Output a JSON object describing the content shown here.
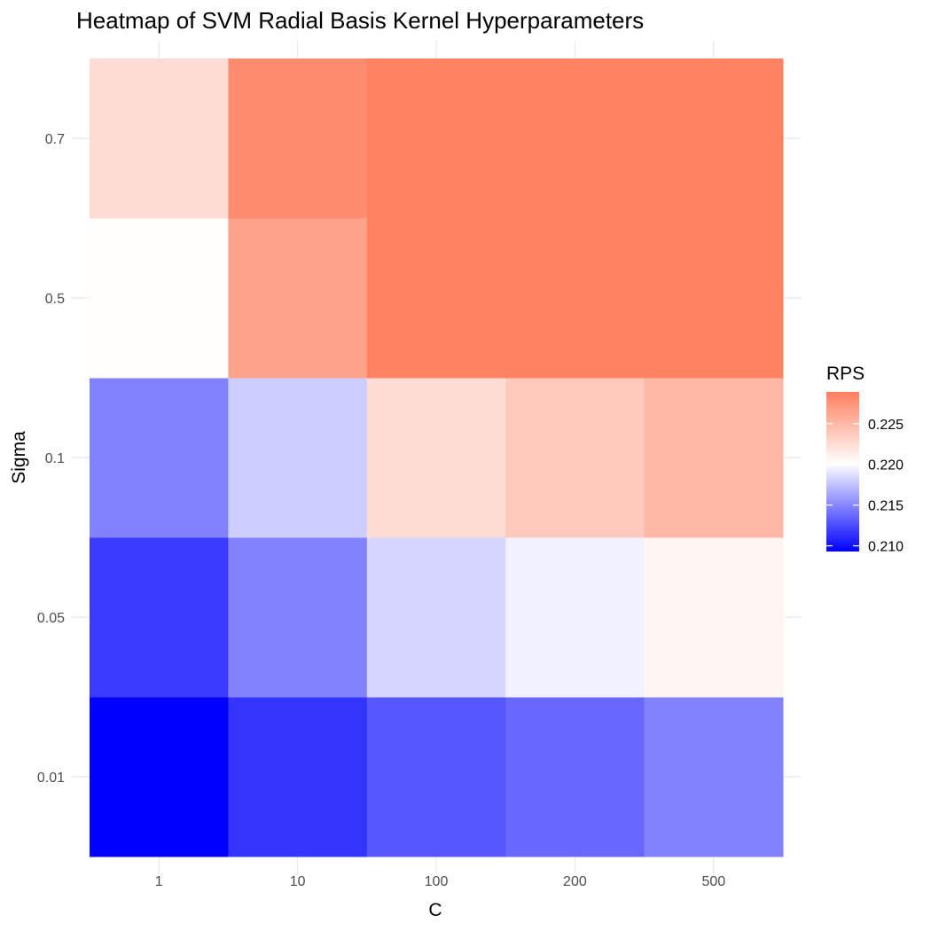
{
  "chart_data": {
    "type": "heatmap",
    "title": "Heatmap of SVM Radial Basis Kernel Hyperparameters",
    "xlabel": "C",
    "ylabel": "Sigma",
    "x_categories": [
      "1",
      "10",
      "100",
      "200",
      "500"
    ],
    "y_categories": [
      "0.01",
      "0.05",
      "0.1",
      "0.5",
      "0.7"
    ],
    "z_values": {
      "0.01": [
        0.2093,
        0.2115,
        0.213,
        0.2137,
        0.2148
      ],
      "0.05": [
        0.2118,
        0.2148,
        0.2183,
        0.2195,
        0.2207
      ],
      "0.1": [
        0.2148,
        0.218,
        0.2225,
        0.2238,
        0.225
      ],
      "0.5": [
        0.2202,
        0.2265,
        0.2287,
        0.2287,
        0.2287
      ],
      "0.7": [
        0.2225,
        0.228,
        0.2287,
        0.2287,
        0.2287
      ]
    },
    "legend": {
      "title": "RPS",
      "position": "right",
      "ticks": [
        0.21,
        0.215,
        0.22,
        0.225
      ],
      "tick_labels": [
        "0.210",
        "0.215",
        "0.220",
        "0.225"
      ],
      "range": [
        0.2093,
        0.2289
      ],
      "colors": {
        "low": "#0000FF",
        "mid": "#FFFFFF",
        "high": "#FF7F5F"
      },
      "midpoint": 0.2201
    },
    "grid": true
  }
}
